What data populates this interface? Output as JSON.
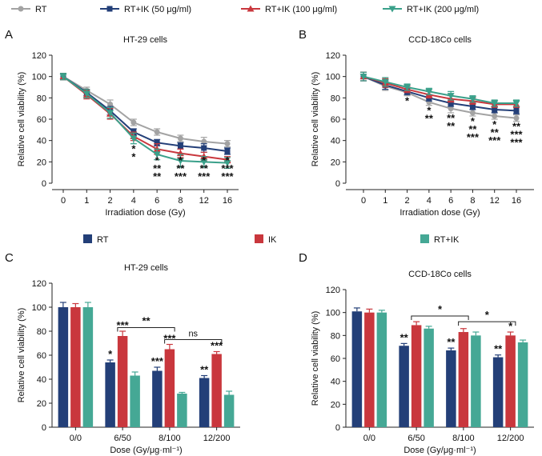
{
  "figure": {
    "legend_top": [
      {
        "label": "RT",
        "color": "#a3a3a3",
        "marker": "circle"
      },
      {
        "label": "RT+IK (50 μg/ml)",
        "color": "#233f78",
        "marker": "square"
      },
      {
        "label": "RT+IK (100 μg/ml)",
        "color": "#c9373d",
        "marker": "triangle-up"
      },
      {
        "label": "RT+IK (200 μg/ml)",
        "color": "#3aa08a",
        "marker": "triangle-down"
      }
    ],
    "legend_bottom": [
      {
        "label": "RT",
        "color": "#233f78"
      },
      {
        "label": "IK",
        "color": "#c9373d"
      },
      {
        "label": "RT+IK",
        "color": "#45a895"
      }
    ]
  },
  "chart_data": [
    {
      "panel": "A",
      "type": "line",
      "title": "HT-29 cells",
      "xlabel": "Irradiation dose (Gy)",
      "ylabel": "Relative cell viability (%)",
      "categories": [
        "0",
        "1",
        "2",
        "4",
        "6",
        "8",
        "12",
        "16"
      ],
      "ylim": [
        0,
        120
      ],
      "yticks": [
        0,
        20,
        40,
        60,
        80,
        100,
        120
      ],
      "series": [
        {
          "name": "RT",
          "color": "#a3a3a3",
          "marker": "circle",
          "values": [
            100,
            87,
            74,
            57,
            48,
            42,
            39,
            37
          ],
          "errors": [
            3,
            3,
            4,
            3,
            3,
            3,
            4,
            3
          ]
        },
        {
          "name": "RT+IK (50 μg/ml)",
          "color": "#233f78",
          "marker": "square",
          "values": [
            100,
            85,
            68,
            48,
            38,
            35,
            33,
            30
          ],
          "errors": [
            3,
            3,
            4,
            3,
            3,
            3,
            4,
            3
          ]
        },
        {
          "name": "RT+IK (100 μg/ml)",
          "color": "#c9373d",
          "marker": "triangle-up",
          "values": [
            100,
            83,
            65,
            44,
            32,
            28,
            25,
            22
          ],
          "errors": [
            3,
            4,
            5,
            4,
            5,
            4,
            4,
            3
          ]
        },
        {
          "name": "RT+IK (200 μg/ml)",
          "color": "#3aa08a",
          "marker": "triangle-down",
          "values": [
            100,
            84,
            66,
            42,
            27,
            21,
            20,
            19
          ],
          "errors": [
            3,
            4,
            5,
            5,
            5,
            6,
            5,
            5
          ]
        }
      ],
      "annotations": [
        {
          "x": 3,
          "lines": [
            {
              "text": "*",
              "color": "#c9373d"
            },
            {
              "text": "*",
              "color": "#3aa08a"
            }
          ]
        },
        {
          "x": 4,
          "lines": [
            {
              "text": "*",
              "color": "#222222"
            },
            {
              "text": "**",
              "color": "#c9373d"
            },
            {
              "text": "**",
              "color": "#3aa08a"
            }
          ]
        },
        {
          "x": 5,
          "lines": [
            {
              "text": "*",
              "color": "#222222"
            },
            {
              "text": "**",
              "color": "#c9373d"
            },
            {
              "text": "***",
              "color": "#3aa08a"
            }
          ]
        },
        {
          "x": 6,
          "lines": [
            {
              "text": "*",
              "color": "#222222"
            },
            {
              "text": "**",
              "color": "#c9373d"
            },
            {
              "text": "***",
              "color": "#3aa08a"
            }
          ]
        },
        {
          "x": 7,
          "lines": [
            {
              "text": "*",
              "color": "#233f78"
            },
            {
              "text": "***",
              "color": "#c9373d"
            },
            {
              "text": "***",
              "color": "#3aa08a"
            }
          ]
        }
      ]
    },
    {
      "panel": "B",
      "type": "line",
      "title": "CCD-18Co cells",
      "xlabel": "Irradiation dose (Gy)",
      "ylabel": "Relative cell viability (%)",
      "categories": [
        "0",
        "1",
        "2",
        "4",
        "6",
        "8",
        "12",
        "16"
      ],
      "ylim": [
        0,
        120
      ],
      "yticks": [
        0,
        20,
        40,
        60,
        80,
        100,
        120
      ],
      "series": [
        {
          "name": "RT",
          "color": "#a3a3a3",
          "marker": "circle",
          "values": [
            100,
            91,
            85,
            76,
            70,
            66,
            63,
            61
          ],
          "errors": [
            4,
            4,
            3,
            3,
            4,
            3,
            3,
            3
          ]
        },
        {
          "name": "RT+IK (50 μg/ml)",
          "color": "#233f78",
          "marker": "square",
          "values": [
            100,
            92,
            86,
            80,
            75,
            72,
            69,
            68
          ],
          "errors": [
            4,
            4,
            3,
            3,
            3,
            3,
            3,
            3
          ]
        },
        {
          "name": "RT+IK (100 μg/ml)",
          "color": "#c9373d",
          "marker": "triangle-up",
          "values": [
            100,
            94,
            88,
            83,
            79,
            77,
            74,
            74
          ],
          "errors": [
            4,
            4,
            3,
            3,
            3,
            3,
            3,
            3
          ]
        },
        {
          "name": "RT+IK (200 μg/ml)",
          "color": "#3aa08a",
          "marker": "triangle-down",
          "values": [
            100,
            95,
            90,
            86,
            82,
            79,
            75,
            75
          ],
          "errors": [
            4,
            4,
            3,
            3,
            4,
            3,
            3,
            3
          ]
        }
      ],
      "annotations": [
        {
          "x": 2,
          "lines": [
            {
              "text": "*",
              "color": "#3aa08a"
            }
          ]
        },
        {
          "x": 3,
          "lines": [
            {
              "text": "*",
              "color": "#c9373d"
            },
            {
              "text": "**",
              "color": "#3aa08a"
            }
          ]
        },
        {
          "x": 4,
          "lines": [
            {
              "text": "**",
              "color": "#c9373d"
            },
            {
              "text": "**",
              "color": "#3aa08a"
            }
          ]
        },
        {
          "x": 5,
          "lines": [
            {
              "text": "*",
              "color": "#233f78"
            },
            {
              "text": "**",
              "color": "#c9373d"
            },
            {
              "text": "***",
              "color": "#3aa08a"
            }
          ]
        },
        {
          "x": 6,
          "lines": [
            {
              "text": "*",
              "color": "#222222"
            },
            {
              "text": "**",
              "color": "#c9373d"
            },
            {
              "text": "***",
              "color": "#3aa08a"
            }
          ]
        },
        {
          "x": 7,
          "lines": [
            {
              "text": "**",
              "color": "#233f78"
            },
            {
              "text": "***",
              "color": "#c9373d"
            },
            {
              "text": "***",
              "color": "#3aa08a"
            }
          ]
        }
      ]
    },
    {
      "panel": "C",
      "type": "bar",
      "title": "HT-29 cells",
      "xlabel": "Dose (Gy/μg·ml⁻¹)",
      "ylabel": "Relative cell viability (%)",
      "categories": [
        "0/0",
        "6/50",
        "8/100",
        "12/200"
      ],
      "ylim": [
        0,
        120
      ],
      "yticks": [
        0,
        20,
        40,
        60,
        80,
        100,
        120
      ],
      "series": [
        {
          "name": "RT",
          "color": "#233f78",
          "values": [
            100,
            54,
            47,
            41
          ],
          "errors": [
            4,
            2,
            3,
            2
          ]
        },
        {
          "name": "IK",
          "color": "#c9373d",
          "values": [
            100,
            76,
            65,
            61
          ],
          "errors": [
            3,
            4,
            4,
            2
          ]
        },
        {
          "name": "RT+IK",
          "color": "#45a895",
          "values": [
            100,
            43,
            28,
            27
          ],
          "errors": [
            4,
            3,
            1,
            3
          ]
        }
      ],
      "bar_annotations": [
        {
          "group": 1,
          "series": 0,
          "text": "*"
        },
        {
          "group": 1,
          "series": 1,
          "text": "***"
        },
        {
          "group": 2,
          "series": 0,
          "text": "***"
        },
        {
          "group": 2,
          "series": 1,
          "text": "***"
        },
        {
          "group": 3,
          "series": 0,
          "text": "**"
        },
        {
          "group": 3,
          "series": 1,
          "text": "***"
        }
      ],
      "brackets": [
        {
          "from": 1,
          "to": 2,
          "y": 83,
          "text": "**"
        },
        {
          "from": 2,
          "to": 3,
          "y": 73,
          "text": "ns"
        }
      ]
    },
    {
      "panel": "D",
      "type": "bar",
      "title": "CCD-18Co cells",
      "xlabel": "Dose (Gy/μg·ml⁻¹)",
      "ylabel": "Relative cell viability (%)",
      "categories": [
        "0/0",
        "6/50",
        "8/100",
        "12/200"
      ],
      "ylim": [
        0,
        120
      ],
      "yticks": [
        0,
        20,
        40,
        60,
        80,
        100,
        120
      ],
      "series": [
        {
          "name": "RT",
          "color": "#233f78",
          "values": [
            101,
            71,
            67,
            61
          ],
          "errors": [
            3,
            2,
            2,
            2
          ]
        },
        {
          "name": "IK",
          "color": "#c9373d",
          "values": [
            100,
            89,
            83,
            80
          ],
          "errors": [
            3,
            3,
            3,
            3
          ]
        },
        {
          "name": "RT+IK",
          "color": "#45a895",
          "values": [
            100,
            86,
            80,
            74
          ],
          "errors": [
            2,
            2,
            3,
            2
          ]
        }
      ],
      "bar_annotations": [
        {
          "group": 1,
          "series": 0,
          "text": "**"
        },
        {
          "group": 2,
          "series": 0,
          "text": "**"
        },
        {
          "group": 3,
          "series": 0,
          "text": "**"
        },
        {
          "group": 3,
          "series": 1,
          "text": "*"
        }
      ],
      "brackets": [
        {
          "from": 1,
          "to": 2,
          "y": 97,
          "text": "*"
        },
        {
          "from": 2,
          "to": 3,
          "y": 92,
          "text": "*"
        }
      ]
    }
  ]
}
